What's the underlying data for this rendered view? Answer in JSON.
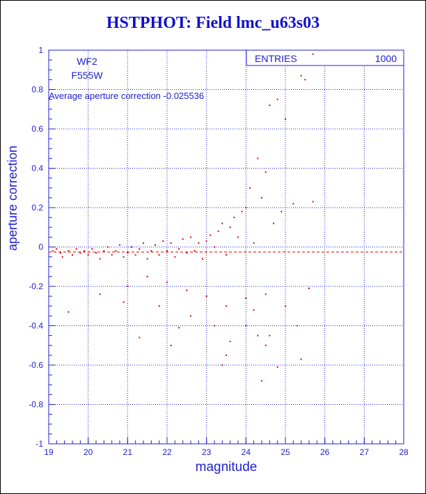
{
  "title": "HSTPHOT: Field lmc_u63s03",
  "colors": {
    "axis": "#2020d0",
    "points": "#e00000",
    "title": "#1010d0"
  },
  "chart_data": {
    "type": "scatter",
    "title": "HSTPHOT: Field lmc_u63s03",
    "xlabel": "magnitude",
    "ylabel": "aperture correction",
    "xlim": [
      19,
      28
    ],
    "ylim": [
      -1,
      1
    ],
    "xticks": [
      "19",
      "20",
      "21",
      "22",
      "23",
      "24",
      "25",
      "26",
      "27",
      "28"
    ],
    "yticks": [
      "-1",
      "-0.8",
      "-0.6",
      "-0.4",
      "-0.2",
      "0",
      "0.2",
      "0.4",
      "0.6",
      "0.8",
      "1"
    ],
    "grid": true,
    "stats": {
      "label": "ENTRIES",
      "value": "1000"
    },
    "annotations": {
      "chip": "WF2",
      "filter": "F555W",
      "average_label": "Average aperture correction  -0.025536"
    },
    "average": -0.025536,
    "series": [
      {
        "values": [
          [
            19.1,
            -0.02
          ],
          [
            19.2,
            -0.01
          ],
          [
            19.3,
            -0.03
          ],
          [
            19.35,
            -0.05
          ],
          [
            19.5,
            -0.02
          ],
          [
            19.6,
            -0.04
          ],
          [
            19.7,
            -0.01
          ],
          [
            19.8,
            -0.03
          ],
          [
            19.9,
            -0.02
          ],
          [
            20.0,
            -0.04
          ],
          [
            20.1,
            -0.01
          ],
          [
            20.2,
            -0.03
          ],
          [
            20.3,
            -0.06
          ],
          [
            20.4,
            -0.02
          ],
          [
            20.5,
            0.0
          ],
          [
            20.6,
            -0.04
          ],
          [
            20.7,
            -0.02
          ],
          [
            20.8,
            0.01
          ],
          [
            20.9,
            -0.05
          ],
          [
            21.0,
            -0.03
          ],
          [
            21.1,
            0.0
          ],
          [
            21.2,
            -0.04
          ],
          [
            21.3,
            -0.01
          ],
          [
            21.4,
            0.02
          ],
          [
            21.5,
            -0.06
          ],
          [
            21.6,
            -0.02
          ],
          [
            21.7,
            0.01
          ],
          [
            21.8,
            -0.04
          ],
          [
            21.9,
            0.03
          ],
          [
            22.0,
            -0.02
          ],
          [
            22.1,
            0.02
          ],
          [
            22.2,
            -0.05
          ],
          [
            22.3,
            -0.01
          ],
          [
            22.4,
            0.04
          ],
          [
            22.5,
            -0.03
          ],
          [
            22.6,
            0.05
          ],
          [
            22.7,
            -0.02
          ],
          [
            22.8,
            0.02
          ],
          [
            22.9,
            -0.06
          ],
          [
            23.0,
            0.03
          ],
          [
            23.1,
            0.06
          ],
          [
            23.2,
            0.0
          ],
          [
            23.3,
            0.08
          ],
          [
            23.4,
            0.12
          ],
          [
            23.5,
            -0.04
          ],
          [
            23.6,
            0.1
          ],
          [
            23.7,
            0.15
          ],
          [
            23.8,
            0.05
          ],
          [
            23.9,
            0.18
          ],
          [
            24.0,
            0.2
          ],
          [
            24.1,
            0.3
          ],
          [
            24.2,
            0.02
          ],
          [
            24.3,
            0.45
          ],
          [
            24.4,
            0.25
          ],
          [
            24.5,
            0.38
          ],
          [
            24.6,
            0.72
          ],
          [
            24.7,
            0.12
          ],
          [
            24.8,
            0.75
          ],
          [
            24.9,
            0.18
          ],
          [
            25.0,
            0.65
          ],
          [
            25.2,
            0.22
          ],
          [
            25.4,
            0.87
          ],
          [
            25.5,
            0.85
          ],
          [
            25.7,
            0.98
          ],
          [
            25.7,
            0.23
          ],
          [
            21.0,
            -0.2
          ],
          [
            21.5,
            -0.15
          ],
          [
            22.0,
            -0.18
          ],
          [
            22.5,
            -0.22
          ],
          [
            23.0,
            -0.25
          ],
          [
            23.5,
            -0.3
          ],
          [
            24.0,
            -0.26
          ],
          [
            24.2,
            -0.32
          ],
          [
            24.5,
            -0.24
          ],
          [
            21.8,
            -0.3
          ],
          [
            22.6,
            -0.35
          ],
          [
            23.2,
            -0.4
          ],
          [
            23.6,
            -0.48
          ],
          [
            24.0,
            -0.4
          ],
          [
            24.3,
            -0.45
          ],
          [
            24.5,
            -0.5
          ],
          [
            19.5,
            -0.33
          ],
          [
            20.3,
            -0.24
          ],
          [
            20.9,
            -0.28
          ],
          [
            21.3,
            -0.46
          ],
          [
            22.1,
            -0.5
          ],
          [
            22.3,
            -0.41
          ],
          [
            23.4,
            -0.6
          ],
          [
            23.5,
            -0.55
          ],
          [
            24.4,
            -0.68
          ],
          [
            25.4,
            -0.57
          ],
          [
            25.3,
            -0.4
          ],
          [
            25.6,
            -0.21
          ],
          [
            24.8,
            -0.61
          ],
          [
            25.0,
            -0.3
          ],
          [
            24.6,
            -0.45
          ]
        ]
      }
    ]
  }
}
